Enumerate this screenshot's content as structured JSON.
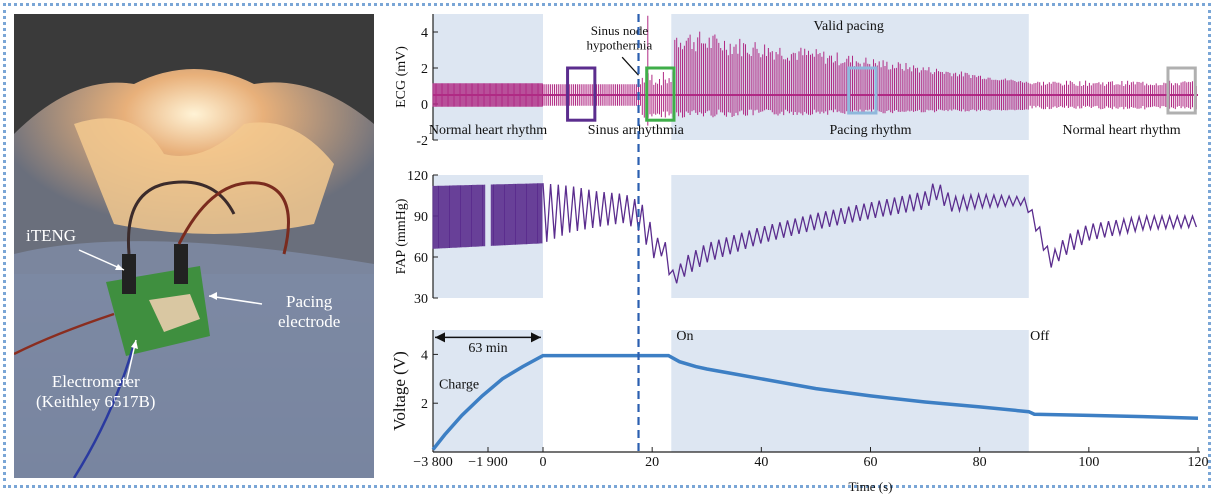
{
  "photo": {
    "labels": {
      "iteng": "iTENG",
      "pacing": "Pacing\nelectrode",
      "electrometer": "Electrometer\n(Keithley 6517B)"
    }
  },
  "colors": {
    "ecg": "#b02a84",
    "fap": "#5b2d8e",
    "voltage": "#3d7fc4",
    "shade": "#dde6f2",
    "box_purple": "#5b2d8e",
    "box_green": "#3fae49",
    "box_blue": "#8fb8dc",
    "box_gray": "#b0b0b0",
    "marker": "#2b5fb0"
  },
  "chart_data": [
    {
      "type": "line",
      "ylabel": "ECG (mV)",
      "ylim": [
        -2,
        5
      ],
      "yticks": [
        -2,
        0,
        2,
        4
      ],
      "shaded_intervals": [
        [
          -3800,
          0
        ],
        [
          23.5,
          89
        ]
      ],
      "region_labels": [
        {
          "text": "Normal heart rhythm",
          "x": -1900,
          "y": -1.4
        },
        {
          "text": "Sinus arrhythmia",
          "x": 17,
          "y": -1.4
        },
        {
          "text": "Pacing rhythm",
          "x": 60,
          "y": -1.4
        },
        {
          "text": "Normal heart rhythm",
          "x": 106,
          "y": -1.4
        },
        {
          "text": "Valid pacing",
          "x": 56,
          "y": 4.4
        }
      ],
      "annotations": [
        {
          "text": "Sinus node",
          "x": 14,
          "y": 4.1
        },
        {
          "text": "hypothermia",
          "x": 14,
          "y": 3.3
        }
      ],
      "highlight_boxes": [
        {
          "x0": 4.5,
          "x1": 9.5,
          "y0": -0.9,
          "y1": 2.0,
          "color": "box_purple"
        },
        {
          "x0": 19,
          "x1": 24,
          "y0": -0.9,
          "y1": 2.0,
          "color": "box_green"
        },
        {
          "x0": 56,
          "x1": 61,
          "y0": -0.5,
          "y1": 2.0,
          "color": "box_blue"
        },
        {
          "x0": 114.5,
          "x1": 119.5,
          "y0": -0.5,
          "y1": 2.0,
          "color": "box_gray"
        }
      ],
      "series": [
        {
          "values_desc": "baseline band -0.2 to 1.2 mV during normal rhythm; pacing spikes up to 4.5 mV decaying after 24 s"
        }
      ]
    },
    {
      "type": "line",
      "ylabel": "FAP (mmHg)",
      "ylim": [
        30,
        120
      ],
      "yticks": [
        30,
        60,
        90,
        120
      ],
      "series": [
        {
          "x": [
            -3800,
            -1900,
            0,
            5,
            10,
            15,
            18,
            20,
            21,
            22,
            23,
            24,
            26,
            30,
            40,
            50,
            60,
            70,
            72,
            75,
            80,
            88,
            89,
            91,
            93,
            96,
            100,
            110,
            120
          ],
          "low": [
            66,
            68,
            70,
            78,
            82,
            85,
            78,
            58,
            62,
            60,
            48,
            39,
            46,
            56,
            70,
            80,
            88,
            95,
            102,
            93,
            96,
            98,
            92,
            72,
            52,
            62,
            72,
            80,
            82
          ],
          "high": [
            112,
            113,
            114,
            112,
            108,
            106,
            100,
            82,
            74,
            78,
            60,
            48,
            60,
            70,
            82,
            92,
            100,
            108,
            116,
            104,
            106,
            104,
            100,
            82,
            62,
            76,
            84,
            90,
            90
          ]
        }
      ]
    },
    {
      "type": "line",
      "xlabel": "Time (s)",
      "ylabel": "Voltage (V)",
      "ylim": [
        0,
        5
      ],
      "yticks": [
        2,
        4
      ],
      "xticks": [
        -3800,
        -1900,
        0,
        20,
        40,
        60,
        80,
        100,
        120
      ],
      "xtick_labels": [
        "−3 800",
        "−1 900",
        "0",
        "20",
        "40",
        "60",
        "80",
        "100",
        "120"
      ],
      "shaded_intervals": [
        [
          -3800,
          0
        ],
        [
          23.5,
          89
        ]
      ],
      "dashed_marker_x": 17.5,
      "annotations": [
        {
          "text": "63 min",
          "x": -1900,
          "y": 4.3
        },
        {
          "text": "Charge",
          "x": -2900,
          "y": 2.8
        },
        {
          "text": "On",
          "x": 26,
          "y": 4.8
        },
        {
          "text": "Off",
          "x": 91,
          "y": 4.8
        }
      ],
      "series": [
        {
          "x": [
            -3800,
            -3400,
            -2800,
            -2100,
            -1400,
            -700,
            0,
            5,
            10,
            15,
            20,
            23,
            25,
            28,
            30,
            35,
            40,
            50,
            60,
            70,
            80,
            89,
            90,
            100,
            110,
            120
          ],
          "y": [
            0.1,
            0.7,
            1.5,
            2.3,
            3.0,
            3.5,
            3.95,
            3.95,
            3.95,
            3.95,
            3.95,
            3.95,
            3.7,
            3.5,
            3.4,
            3.2,
            3.0,
            2.6,
            2.3,
            2.05,
            1.85,
            1.65,
            1.55,
            1.5,
            1.45,
            1.38
          ]
        }
      ]
    }
  ]
}
